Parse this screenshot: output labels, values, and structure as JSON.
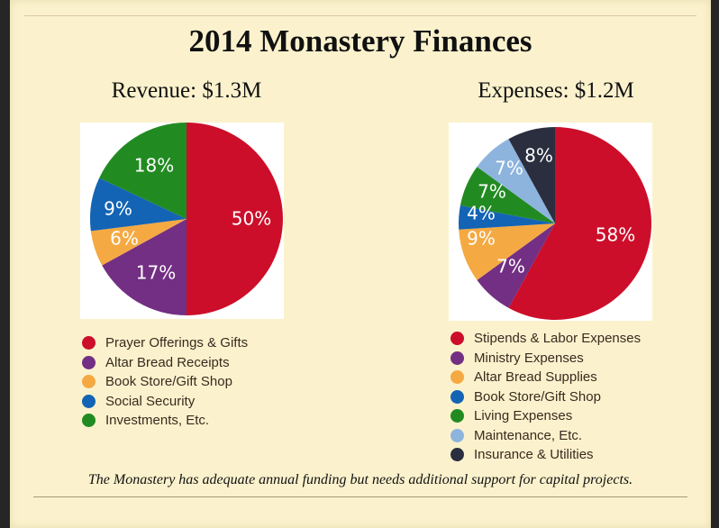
{
  "colors": {
    "red": "#cc0e2a",
    "purple": "#732f83",
    "orange": "#f5a942",
    "blue": "#1364b4",
    "green": "#218b22",
    "lightblue": "#8db4dd",
    "navy": "#2a2e3f"
  },
  "title": "2014 Monastery Finances",
  "footer": "The Monastery has adequate annual funding but needs additional support for capital projects.",
  "chart_data": [
    {
      "type": "pie",
      "title": "Revenue: $1.3M",
      "categories": [
        "Prayer Offerings & Gifts",
        "Altar Bread Receipts",
        "Book Store/Gift Shop",
        "Social Security",
        "Investments, Etc."
      ],
      "values": [
        50,
        17,
        6,
        9,
        18
      ],
      "labels": [
        "50%",
        "17%",
        "6%",
        "9%",
        "18%"
      ],
      "colors": [
        "#cc0e2a",
        "#732f83",
        "#f5a942",
        "#1364b4",
        "#218b22"
      ],
      "legend": "below"
    },
    {
      "type": "pie",
      "title": "Expenses: $1.2M",
      "categories": [
        "Stipends & Labor Expenses",
        "Ministry Expenses",
        "Altar Bread Supplies",
        "Book Store/Gift Shop",
        "Living Expenses",
        "Maintenance, Etc.",
        "Insurance & Utilities"
      ],
      "values": [
        58,
        7,
        9,
        4,
        7,
        7,
        8
      ],
      "labels": [
        "58%",
        "7%",
        "9%",
        "4%",
        "7%",
        "7%",
        "8%"
      ],
      "colors": [
        "#cc0e2a",
        "#732f83",
        "#f5a942",
        "#1364b4",
        "#218b22",
        "#8db4dd",
        "#2a2e3f"
      ],
      "legend": "below"
    }
  ]
}
